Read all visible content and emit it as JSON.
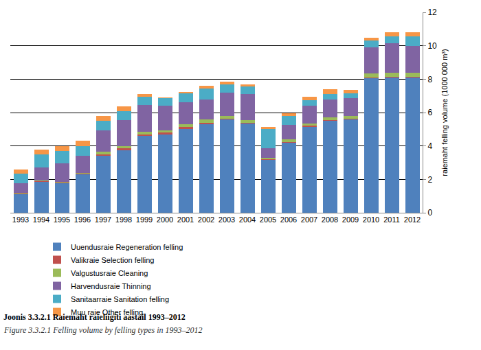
{
  "chart_data": {
    "type": "bar",
    "title": "Joonis 3.3.2.1 Raiemaht raieliigiti aastail 1993–2012",
    "subtitle": "Figure 3.3.2.1 Felling volume by felling types in 1993–2012",
    "y_label": "raiemaht felling volume (1000 000 m³)",
    "categories": [
      "1993",
      "1994",
      "1995",
      "1996",
      "1997",
      "1998",
      "1999",
      "2000",
      "2001",
      "2002",
      "2003",
      "2004",
      "2005",
      "2006",
      "2007",
      "2008",
      "2009",
      "2010",
      "2011",
      "2012"
    ],
    "series": [
      {
        "name": "Uuendusraie Regeneration felling",
        "color": "#4F81BD",
        "values": [
          1.1,
          1.85,
          1.75,
          2.3,
          3.4,
          3.75,
          4.6,
          4.7,
          5.0,
          5.3,
          5.6,
          5.35,
          3.15,
          4.2,
          5.15,
          5.5,
          5.6,
          8.05,
          8.1,
          8.1
        ]
      },
      {
        "name": "Valikraie Selection felling",
        "color": "#C0504D",
        "values": [
          0.05,
          0.05,
          0.05,
          0.05,
          0.1,
          0.1,
          0.1,
          0.1,
          0.15,
          0.1,
          0.05,
          0.05,
          0.05,
          0.05,
          0.05,
          0.05,
          0.05,
          0.05,
          0.05,
          0.05
        ]
      },
      {
        "name": "Valgustusraie Cleaning",
        "color": "#9BBB59",
        "values": [
          0.05,
          0.05,
          0.05,
          0.05,
          0.15,
          0.15,
          0.15,
          0.15,
          0.15,
          0.2,
          0.15,
          0.15,
          0.1,
          0.15,
          0.15,
          0.15,
          0.15,
          0.25,
          0.25,
          0.25
        ]
      },
      {
        "name": "Harvendusraie Thinning",
        "color": "#8064A2",
        "values": [
          0.55,
          0.75,
          1.1,
          1.0,
          1.3,
          1.55,
          1.6,
          1.45,
          1.3,
          1.2,
          1.4,
          1.55,
          0.55,
          0.85,
          1.05,
          1.1,
          1.05,
          1.55,
          1.75,
          1.6
        ]
      },
      {
        "name": "Sanitaarraie Sanitation felling",
        "color": "#4BACC6",
        "values": [
          0.6,
          0.8,
          0.75,
          0.6,
          0.55,
          0.55,
          0.5,
          0.45,
          0.55,
          0.65,
          0.5,
          0.45,
          1.15,
          0.55,
          0.35,
          0.3,
          0.3,
          0.4,
          0.4,
          0.55
        ]
      },
      {
        "name": "Muu raie Other felling",
        "color": "#F79646",
        "values": [
          0.25,
          0.3,
          0.3,
          0.3,
          0.3,
          0.25,
          0.15,
          0.05,
          0.1,
          0.15,
          0.15,
          0.15,
          0.15,
          0.15,
          0.2,
          0.3,
          0.2,
          0.2,
          0.25,
          0.25
        ]
      }
    ],
    "stacked": true,
    "ylim": [
      0,
      12
    ],
    "yticks": [
      0,
      2,
      4,
      6,
      8,
      10,
      12
    ],
    "grid": true,
    "legend": "bottom"
  }
}
